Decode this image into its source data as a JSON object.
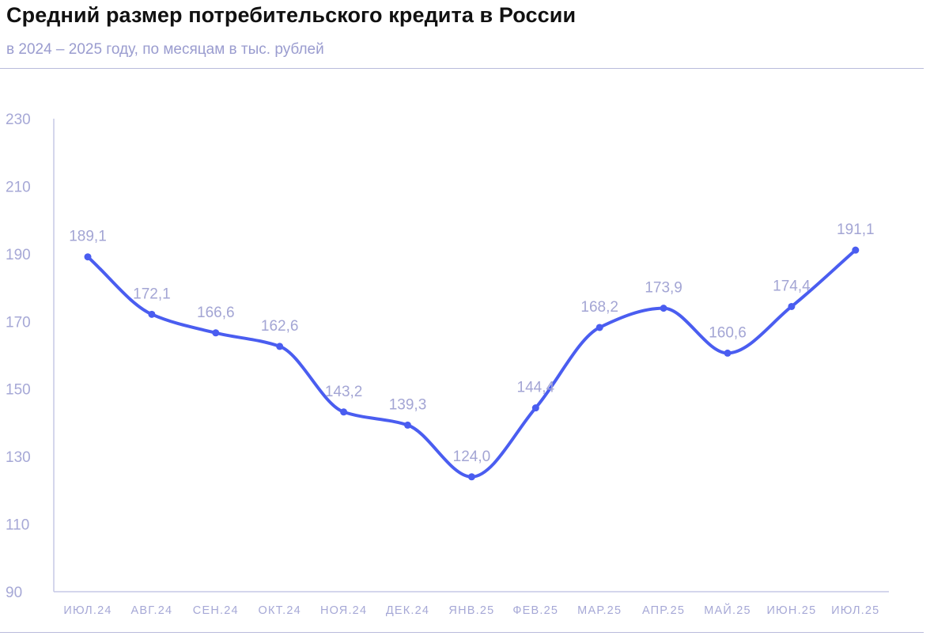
{
  "header": {
    "title": "Средний размер потребительского кредита в России",
    "subtitle": "в 2024 – 2025 году, по месяцам в тыс. рублей"
  },
  "colors": {
    "line": "#4a5df0",
    "axis": "#c6c8e6",
    "text": "#a6a8d6"
  },
  "chart_data": {
    "type": "line",
    "title": "Средний размер потребительского кредита в России",
    "subtitle": "в 2024 – 2025 году, по месяцам в тыс. рублей",
    "categories": [
      "ИЮЛ.24",
      "АВГ.24",
      "СЕН.24",
      "ОКТ.24",
      "НОЯ.24",
      "ДЕК.24",
      "ЯНВ.25",
      "ФЕВ.25",
      "МАР.25",
      "АПР.25",
      "МАЙ.25",
      "ИЮН.25",
      "ИЮЛ.25"
    ],
    "values": [
      189.1,
      172.1,
      166.6,
      162.6,
      143.2,
      139.3,
      124.0,
      144.4,
      168.2,
      173.9,
      160.6,
      174.4,
      191.1
    ],
    "value_labels": [
      "189,1",
      "172,1",
      "166,6",
      "162,6",
      "143,2",
      "139,3",
      "124,0",
      "144,4",
      "168,2",
      "173,9",
      "160,6",
      "174,4",
      "191,1"
    ],
    "yticks": [
      90,
      110,
      130,
      150,
      170,
      190,
      210,
      230
    ],
    "ylim": [
      90,
      230
    ],
    "grid": false,
    "smooth": true
  }
}
